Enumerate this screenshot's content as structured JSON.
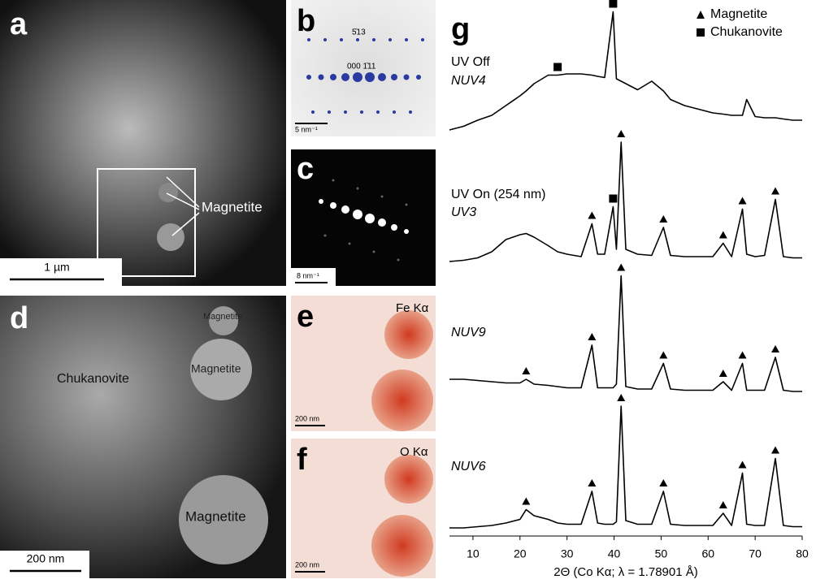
{
  "panels": {
    "a": {
      "letter": "a",
      "labels": [
        "Magnetite"
      ],
      "scale": "1 µm"
    },
    "b": {
      "letter": "b",
      "labels": [
        "5̄13",
        "000 1̄11"
      ],
      "scale": "5 nm⁻¹"
    },
    "c": {
      "letter": "c",
      "scale": "8 nm⁻¹"
    },
    "d": {
      "letter": "d",
      "labels": [
        "Magnetite",
        "Magnetite",
        "Chukanovite",
        "Magnetite"
      ],
      "scale": "200 nm"
    },
    "e": {
      "letter": "e",
      "labels": [
        "Fe Kα"
      ],
      "scale": "200 nm"
    },
    "f": {
      "letter": "f",
      "labels": [
        "O Kα"
      ],
      "scale": "200 nm"
    }
  },
  "chart_data": {
    "type": "line",
    "panel": "g",
    "xlabel": "2Θ (Co Kα; λ = 1.78901 Å)",
    "xlim": [
      5,
      80
    ],
    "xticks": [
      10,
      20,
      30,
      40,
      50,
      60,
      70,
      80
    ],
    "legend": [
      {
        "label": "Magnetite",
        "symbol": "triangle"
      },
      {
        "label": "Chukanovite",
        "symbol": "square"
      }
    ],
    "x": [
      5,
      8,
      11,
      14,
      17,
      20,
      21.3,
      23,
      26,
      28,
      30,
      33,
      35.3,
      36.5,
      38,
      39.8,
      40.5,
      41.5,
      42.5,
      45,
      48,
      50.5,
      52,
      55,
      58,
      61,
      63.2,
      65,
      67.3,
      68.2,
      70,
      72,
      74.3,
      76,
      78,
      80
    ],
    "series": [
      {
        "condition": "UV Off",
        "name": "NUV4",
        "color": "#000000",
        "values": [
          0,
          3,
          8,
          12,
          20,
          28,
          32,
          38,
          45,
          45,
          46,
          46,
          45,
          44,
          43,
          97,
          42,
          40,
          38,
          33,
          40,
          32,
          25,
          20,
          17,
          14,
          13,
          12,
          12,
          25,
          11,
          10,
          10,
          9,
          8,
          8
        ],
        "markers": [
          {
            "x": 28,
            "phase": 1
          },
          {
            "x": 39.8,
            "phase": 1
          }
        ]
      },
      {
        "condition": "UV On (254 nm)",
        "name": "UV3",
        "color": "#000000",
        "values": [
          2,
          3,
          5,
          10,
          20,
          24,
          25,
          22,
          15,
          10,
          8,
          6,
          33,
          8,
          8,
          47,
          12,
          100,
          12,
          8,
          7,
          30,
          7,
          6,
          6,
          6,
          17,
          6,
          45,
          8,
          6,
          7,
          53,
          6,
          5,
          5
        ],
        "markers": [
          {
            "x": 35.3,
            "phase": 0
          },
          {
            "x": 39.8,
            "phase": 1
          },
          {
            "x": 41.5,
            "phase": 0
          },
          {
            "x": 50.5,
            "phase": 0
          },
          {
            "x": 63.2,
            "phase": 0
          },
          {
            "x": 67.3,
            "phase": 0
          },
          {
            "x": 74.3,
            "phase": 0
          }
        ]
      },
      {
        "name": "NUV9",
        "color": "#000000",
        "values": [
          12,
          12,
          11,
          10,
          9,
          9,
          12,
          8,
          7,
          6,
          5,
          5,
          40,
          5,
          5,
          5,
          8,
          97,
          6,
          4,
          4,
          25,
          4,
          3,
          3,
          3,
          10,
          3,
          25,
          3,
          3,
          3,
          30,
          3,
          2,
          2
        ],
        "markers": [
          {
            "x": 21.3,
            "phase": 0
          },
          {
            "x": 35.3,
            "phase": 0
          },
          {
            "x": 41.5,
            "phase": 0
          },
          {
            "x": 50.5,
            "phase": 0
          },
          {
            "x": 63.2,
            "phase": 0
          },
          {
            "x": 67.3,
            "phase": 0
          },
          {
            "x": 74.3,
            "phase": 0
          }
        ]
      },
      {
        "name": "NUV6",
        "color": "#000000",
        "values": [
          0,
          0,
          1,
          2,
          4,
          7,
          15,
          10,
          7,
          4,
          3,
          3,
          30,
          4,
          3,
          3,
          5,
          100,
          6,
          3,
          3,
          30,
          3,
          2,
          2,
          2,
          12,
          2,
          45,
          3,
          2,
          2,
          57,
          2,
          1,
          1
        ],
        "markers": [
          {
            "x": 21.3,
            "phase": 0
          },
          {
            "x": 35.3,
            "phase": 0
          },
          {
            "x": 41.5,
            "phase": 0
          },
          {
            "x": 50.5,
            "phase": 0
          },
          {
            "x": 63.2,
            "phase": 0
          },
          {
            "x": 67.3,
            "phase": 0
          },
          {
            "x": 74.3,
            "phase": 0
          }
        ]
      }
    ]
  }
}
